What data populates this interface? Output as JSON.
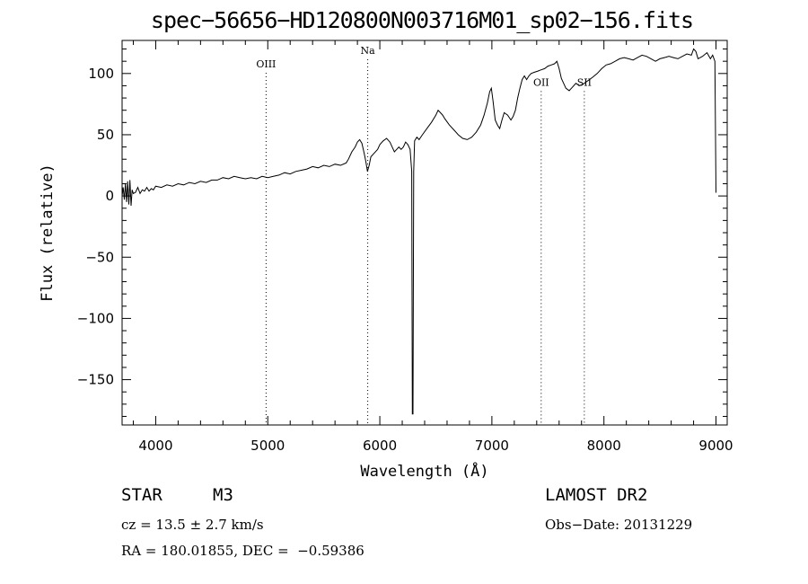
{
  "chart_data": {
    "type": "line",
    "title": "spec−56656−HD120800N003716M01_sp02−156.fits",
    "xlabel": "Wavelength (Å)",
    "ylabel": "Flux (relative)",
    "xlim": [
      3700,
      9100
    ],
    "ylim": [
      -187,
      127
    ],
    "xticks": [
      {
        "value": 4000,
        "label": "4000"
      },
      {
        "value": 5000,
        "label": "5000"
      },
      {
        "value": 6000,
        "label": "6000"
      },
      {
        "value": 7000,
        "label": "7000"
      },
      {
        "value": 8000,
        "label": "8000"
      },
      {
        "value": 9000,
        "label": "9000"
      }
    ],
    "yticks": [
      {
        "value": 100,
        "label": "100"
      },
      {
        "value": 50,
        "label": "50"
      },
      {
        "value": 0,
        "label": "0"
      },
      {
        "value": -50,
        "label": "−50"
      },
      {
        "value": -100,
        "label": "−100"
      },
      {
        "value": -150,
        "label": "−150"
      }
    ],
    "grid": false,
    "line_markers": [
      {
        "label": "OIII",
        "wavelength": 4985,
        "label_flux": 105
      },
      {
        "label": "Na",
        "wavelength": 5892,
        "label_flux": 116
      },
      {
        "label": "OII",
        "wavelength": 7440,
        "label_flux": 90
      },
      {
        "label": "SII",
        "wavelength": 7825,
        "label_flux": 90
      }
    ],
    "series": [
      {
        "points": [
          [
            3700,
            0
          ],
          [
            3710,
            7
          ],
          [
            3720,
            -3
          ],
          [
            3730,
            10
          ],
          [
            3740,
            -5
          ],
          [
            3750,
            12
          ],
          [
            3760,
            -7
          ],
          [
            3770,
            13
          ],
          [
            3780,
            -8
          ],
          [
            3790,
            5
          ],
          [
            3800,
            2
          ],
          [
            3820,
            3
          ],
          [
            3840,
            7
          ],
          [
            3860,
            2
          ],
          [
            3880,
            5
          ],
          [
            3900,
            4
          ],
          [
            3920,
            7
          ],
          [
            3940,
            4
          ],
          [
            3960,
            6
          ],
          [
            3980,
            5
          ],
          [
            4000,
            8
          ],
          [
            4050,
            7
          ],
          [
            4100,
            9
          ],
          [
            4150,
            8
          ],
          [
            4200,
            10
          ],
          [
            4250,
            9
          ],
          [
            4300,
            11
          ],
          [
            4350,
            10
          ],
          [
            4400,
            12
          ],
          [
            4450,
            11
          ],
          [
            4500,
            13
          ],
          [
            4550,
            13
          ],
          [
            4600,
            15
          ],
          [
            4650,
            14
          ],
          [
            4700,
            16
          ],
          [
            4750,
            15
          ],
          [
            4800,
            14
          ],
          [
            4850,
            15
          ],
          [
            4900,
            14
          ],
          [
            4950,
            16
          ],
          [
            5000,
            15
          ],
          [
            5050,
            16
          ],
          [
            5100,
            17
          ],
          [
            5150,
            19
          ],
          [
            5200,
            18
          ],
          [
            5250,
            20
          ],
          [
            5300,
            21
          ],
          [
            5350,
            22
          ],
          [
            5400,
            24
          ],
          [
            5450,
            23
          ],
          [
            5500,
            25
          ],
          [
            5550,
            24
          ],
          [
            5600,
            26
          ],
          [
            5650,
            25
          ],
          [
            5700,
            27
          ],
          [
            5720,
            30
          ],
          [
            5750,
            36
          ],
          [
            5780,
            40
          ],
          [
            5800,
            44
          ],
          [
            5820,
            46
          ],
          [
            5840,
            43
          ],
          [
            5860,
            35
          ],
          [
            5875,
            28
          ],
          [
            5890,
            20
          ],
          [
            5905,
            25
          ],
          [
            5920,
            32
          ],
          [
            5950,
            35
          ],
          [
            5980,
            38
          ],
          [
            6000,
            42
          ],
          [
            6030,
            45
          ],
          [
            6060,
            47
          ],
          [
            6090,
            44
          ],
          [
            6110,
            40
          ],
          [
            6130,
            36
          ],
          [
            6150,
            38
          ],
          [
            6170,
            40
          ],
          [
            6190,
            38
          ],
          [
            6210,
            40
          ],
          [
            6230,
            44
          ],
          [
            6250,
            42
          ],
          [
            6270,
            38
          ],
          [
            6285,
            20
          ],
          [
            6290,
            -178
          ],
          [
            6296,
            -178
          ],
          [
            6302,
            20
          ],
          [
            6310,
            45
          ],
          [
            6330,
            48
          ],
          [
            6350,
            46
          ],
          [
            6380,
            50
          ],
          [
            6420,
            55
          ],
          [
            6460,
            60
          ],
          [
            6500,
            66
          ],
          [
            6520,
            70
          ],
          [
            6540,
            68
          ],
          [
            6560,
            66
          ],
          [
            6580,
            63
          ],
          [
            6620,
            58
          ],
          [
            6660,
            54
          ],
          [
            6700,
            50
          ],
          [
            6740,
            47
          ],
          [
            6780,
            46
          ],
          [
            6820,
            48
          ],
          [
            6860,
            52
          ],
          [
            6900,
            58
          ],
          [
            6930,
            66
          ],
          [
            6960,
            76
          ],
          [
            6980,
            85
          ],
          [
            6995,
            88
          ],
          [
            7010,
            78
          ],
          [
            7030,
            62
          ],
          [
            7050,
            58
          ],
          [
            7070,
            55
          ],
          [
            7090,
            62
          ],
          [
            7110,
            68
          ],
          [
            7140,
            66
          ],
          [
            7170,
            62
          ],
          [
            7190,
            65
          ],
          [
            7210,
            70
          ],
          [
            7230,
            80
          ],
          [
            7250,
            88
          ],
          [
            7270,
            95
          ],
          [
            7290,
            98
          ],
          [
            7310,
            95
          ],
          [
            7330,
            98
          ],
          [
            7350,
            100
          ],
          [
            7380,
            101
          ],
          [
            7410,
            102
          ],
          [
            7440,
            103
          ],
          [
            7470,
            104
          ],
          [
            7500,
            106
          ],
          [
            7530,
            107
          ],
          [
            7560,
            108
          ],
          [
            7580,
            110
          ],
          [
            7600,
            104
          ],
          [
            7620,
            96
          ],
          [
            7640,
            92
          ],
          [
            7660,
            88
          ],
          [
            7690,
            86
          ],
          [
            7720,
            89
          ],
          [
            7750,
            92
          ],
          [
            7780,
            90
          ],
          [
            7810,
            91
          ],
          [
            7840,
            93
          ],
          [
            7870,
            95
          ],
          [
            7900,
            97
          ],
          [
            7940,
            100
          ],
          [
            7980,
            104
          ],
          [
            8020,
            107
          ],
          [
            8060,
            108
          ],
          [
            8100,
            110
          ],
          [
            8140,
            112
          ],
          [
            8180,
            113
          ],
          [
            8220,
            112
          ],
          [
            8260,
            111
          ],
          [
            8300,
            113
          ],
          [
            8340,
            115
          ],
          [
            8380,
            114
          ],
          [
            8420,
            112
          ],
          [
            8460,
            110
          ],
          [
            8500,
            112
          ],
          [
            8540,
            113
          ],
          [
            8580,
            114
          ],
          [
            8620,
            113
          ],
          [
            8660,
            112
          ],
          [
            8700,
            114
          ],
          [
            8740,
            116
          ],
          [
            8780,
            115
          ],
          [
            8800,
            120
          ],
          [
            8820,
            118
          ],
          [
            8840,
            112
          ],
          [
            8880,
            114
          ],
          [
            8920,
            117
          ],
          [
            8950,
            112
          ],
          [
            8970,
            115
          ],
          [
            8990,
            110
          ],
          [
            9000,
            3
          ],
          [
            9004,
            3
          ]
        ]
      }
    ]
  },
  "info": {
    "object_type": "STAR",
    "subclass": "M3",
    "survey": "LAMOST DR2",
    "velocity": "cz = 13.5 ± 2.7 km/s",
    "obs_date": "Obs−Date: 20131229",
    "coords": "RA = 180.01855, DEC =  −0.59386"
  }
}
